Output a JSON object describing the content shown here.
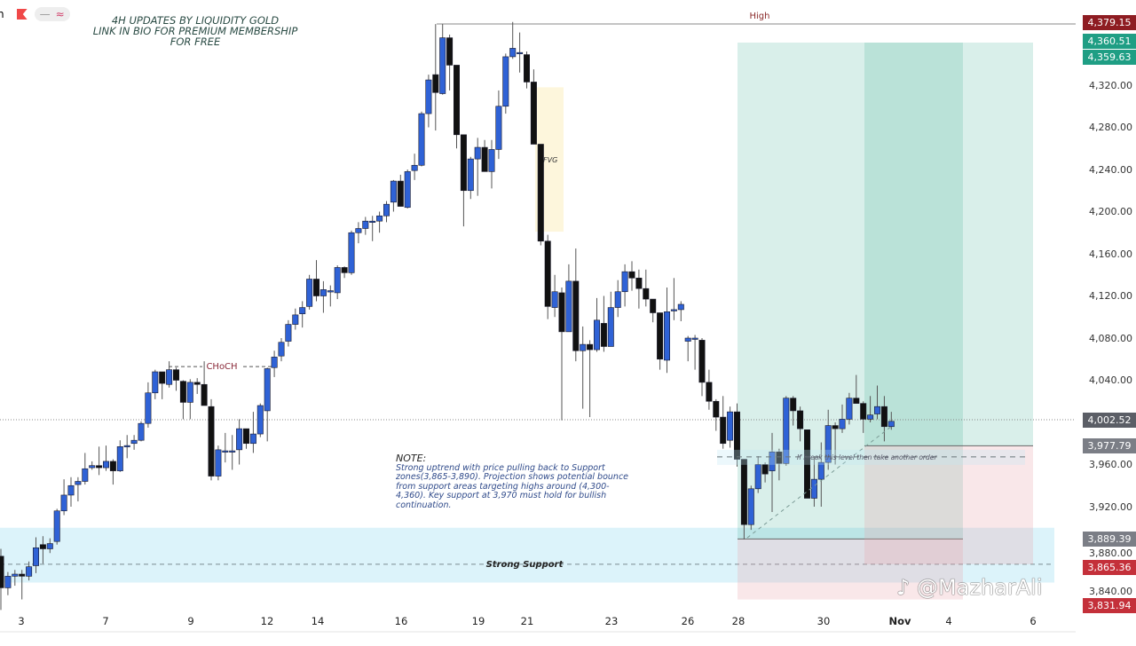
{
  "header": {
    "title_lines": [
      "4H UPDATES BY LIQUIDITY GOLD",
      "LINK IN BIO FOR PREMIUM MEMBERSHIP",
      "FOR FREE"
    ],
    "left_char": "n",
    "toolbar_icons": [
      "flag-icon",
      "minus-icon",
      "wave-icon"
    ]
  },
  "note": {
    "heading": "NOTE:",
    "body": "Strong uptrend with price pulling back to Support zones(3,865-3,890). Projection shows potential bounce from support areas targeting highs around (4,300-4,360). Key support at 3,970 must hold for bullish continuation."
  },
  "watermark": "@MazharAli",
  "colors": {
    "bull": "#2f62d6",
    "bear": "#111111",
    "profit": "#2aa58a",
    "loss": "#e8a0a8",
    "support": "#bfe9f5",
    "fvg": "#fdf6dc"
  },
  "chart_data": {
    "type": "candlestick",
    "title": "",
    "y_ticks": [
      4320,
      4280,
      4240,
      4200,
      4160,
      4120,
      4080,
      4040,
      3960,
      3920,
      3880,
      3840
    ],
    "y_tick_labels": [
      "4,320.00",
      "4,280.00",
      "4,240.00",
      "4,200.00",
      "4,160.00",
      "4,120.00",
      "4,080.00",
      "4,040.00",
      "3,960.00",
      "3,920.00",
      "3,880.00",
      "3,840.00"
    ],
    "x_ticks": [
      "3",
      "7",
      "9",
      "12",
      "14",
      "16",
      "19",
      "21",
      "23",
      "26",
      "28",
      "30",
      "Nov",
      "4",
      "6"
    ],
    "price_badges": [
      {
        "label": "4,379.15",
        "value": 4379.15,
        "color": "#8e1c22"
      },
      {
        "label": "4,360.51",
        "value": 4361.5,
        "color": "#1f9e84"
      },
      {
        "label": "4,359.63",
        "value": 4356,
        "color": "#1f9e84"
      },
      {
        "label": "4,002.52",
        "value": 4002.52,
        "color": "#5b5e66"
      },
      {
        "label": "3,977.79",
        "value": 3977.79,
        "color": "#7b7e86"
      },
      {
        "label": "3,889.39",
        "value": 3889.39,
        "color": "#7b7e86"
      },
      {
        "label": "3,865.36",
        "value": 3865.36,
        "color": "#c4303a"
      },
      {
        "label": "3,831.94",
        "value": 3831.94,
        "color": "#c4303a"
      }
    ],
    "annotations": {
      "high_label": "High",
      "high_value": 4379.15,
      "choch_label": "CHoCH",
      "choch_value": 4053,
      "fvg_label": "FVG",
      "fvg_range": [
        4181,
        4318
      ],
      "support_label": "Strong Support",
      "support_range": [
        3848,
        3900
      ],
      "support_line": 3865.36,
      "break_text": "If break this level then take another order",
      "break_level": 3974,
      "current_price": 4002.52,
      "positions": [
        {
          "entry": 3889.39,
          "target": 4359.63,
          "stop": 3831.94
        },
        {
          "entry": 3977.79,
          "target": 4360.51,
          "stop": 3865.36
        }
      ]
    },
    "candles": [
      [
        3873,
        3880,
        3822,
        3843
      ],
      [
        3843,
        3858,
        3836,
        3854
      ],
      [
        3854,
        3860,
        3845,
        3856
      ],
      [
        3856,
        3860,
        3832,
        3854
      ],
      [
        3854,
        3868,
        3850,
        3863
      ],
      [
        3864,
        3891,
        3857,
        3881
      ],
      [
        3884,
        3892,
        3866,
        3880
      ],
      [
        3880,
        3890,
        3876,
        3885
      ],
      [
        3887,
        3918,
        3884,
        3916
      ],
      [
        3916,
        3946,
        3912,
        3931
      ],
      [
        3931,
        3948,
        3920,
        3940
      ],
      [
        3941,
        3948,
        3925,
        3944
      ],
      [
        3944,
        3971,
        3941,
        3956
      ],
      [
        3957,
        3963,
        3955,
        3959
      ],
      [
        3959,
        3977,
        3950,
        3957
      ],
      [
        3957,
        3978,
        3954,
        3963
      ],
      [
        3963,
        3965,
        3941,
        3954
      ],
      [
        3954,
        3983,
        3953,
        3977
      ],
      [
        3978,
        3988,
        3966,
        3978
      ],
      [
        3980,
        3988,
        3974,
        3983
      ],
      [
        3983,
        4001,
        3982,
        3999
      ],
      [
        3999,
        4038,
        3995,
        4028
      ],
      [
        4028,
        4050,
        4022,
        4048
      ],
      [
        4048,
        4048,
        4022,
        4037
      ],
      [
        4036,
        4058,
        4033,
        4050
      ],
      [
        4050,
        4052,
        4030,
        4040
      ],
      [
        4039,
        4040,
        4003,
        4019
      ],
      [
        4019,
        4041,
        4003,
        4038
      ],
      [
        4038,
        4042,
        4027,
        4036
      ],
      [
        4036,
        4058,
        4016,
        4016
      ],
      [
        4015,
        4022,
        3945,
        3949
      ],
      [
        3949,
        3978,
        3945,
        3974
      ],
      [
        3973,
        3990,
        3962,
        3973
      ],
      [
        3973,
        3988,
        3955,
        3973
      ],
      [
        3974,
        4003,
        3960,
        3994
      ],
      [
        3994,
        3994,
        3975,
        3980
      ],
      [
        3980,
        4010,
        3971,
        3989
      ],
      [
        3989,
        4018,
        3986,
        4016
      ],
      [
        4011,
        4052,
        3982,
        4051
      ],
      [
        4052,
        4068,
        4043,
        4062
      ],
      [
        4063,
        4080,
        4058,
        4076
      ],
      [
        4077,
        4097,
        4072,
        4093
      ],
      [
        4093,
        4108,
        4088,
        4102
      ],
      [
        4103,
        4115,
        4090,
        4109
      ],
      [
        4110,
        4140,
        4107,
        4136
      ],
      [
        4136,
        4154,
        4115,
        4120
      ],
      [
        4120,
        4134,
        4104,
        4126
      ],
      [
        4125,
        4130,
        4110,
        4125
      ],
      [
        4123,
        4149,
        4117,
        4147
      ],
      [
        4147,
        4148,
        4137,
        4142
      ],
      [
        4142,
        4182,
        4140,
        4180
      ],
      [
        4180,
        4190,
        4170,
        4184
      ],
      [
        4184,
        4195,
        4178,
        4191
      ],
      [
        4191,
        4196,
        4172,
        4191
      ],
      [
        4191,
        4200,
        4180,
        4196
      ],
      [
        4196,
        4210,
        4190,
        4207
      ],
      [
        4209,
        4230,
        4200,
        4229
      ],
      [
        4229,
        4235,
        4205,
        4205
      ],
      [
        4204,
        4240,
        4203,
        4238
      ],
      [
        4239,
        4255,
        4230,
        4244
      ],
      [
        4244,
        4295,
        4243,
        4293
      ],
      [
        4293,
        4330,
        4280,
        4325
      ],
      [
        4330,
        4378,
        4277,
        4313
      ],
      [
        4312,
        4378,
        4311,
        4365
      ],
      [
        4365,
        4368,
        4315,
        4339
      ],
      [
        4339,
        4339,
        4260,
        4273
      ],
      [
        4273,
        4273,
        4186,
        4220
      ],
      [
        4220,
        4252,
        4212,
        4250
      ],
      [
        4250,
        4270,
        4215,
        4261
      ],
      [
        4261,
        4268,
        4238,
        4238
      ],
      [
        4238,
        4268,
        4222,
        4259
      ],
      [
        4259,
        4315,
        4250,
        4300
      ],
      [
        4300,
        4350,
        4293,
        4347
      ],
      [
        4347,
        4380,
        4345,
        4355
      ],
      [
        4351,
        4370,
        4332,
        4351
      ],
      [
        4349,
        4352,
        4317,
        4323
      ],
      [
        4323,
        4335,
        4264,
        4264
      ],
      [
        4264,
        4264,
        4168,
        4172
      ],
      [
        4172,
        4178,
        4098,
        4110
      ],
      [
        4109,
        4140,
        4100,
        4124
      ],
      [
        4123,
        4128,
        4002,
        4086
      ],
      [
        4086,
        4150,
        4086,
        4134
      ],
      [
        4134,
        4165,
        4058,
        4068
      ],
      [
        4068,
        4091,
        4013,
        4074
      ],
      [
        4074,
        4078,
        4005,
        4069
      ],
      [
        4069,
        4118,
        4067,
        4097
      ],
      [
        4094,
        4120,
        4067,
        4072
      ],
      [
        4072,
        4124,
        4072,
        4109
      ],
      [
        4109,
        4135,
        4100,
        4124
      ],
      [
        4124,
        4150,
        4110,
        4143
      ],
      [
        4143,
        4153,
        4125,
        4137
      ],
      [
        4137,
        4145,
        4108,
        4127
      ],
      [
        4127,
        4145,
        4110,
        4117
      ],
      [
        4117,
        4117,
        4095,
        4104
      ],
      [
        4104,
        4104,
        4050,
        4060
      ],
      [
        4059,
        4128,
        4047,
        4105
      ],
      [
        4107,
        4137,
        4097,
        4107
      ],
      [
        4107,
        4115,
        4096,
        4112
      ],
      [
        4077,
        4082,
        4058,
        4080
      ],
      [
        4080,
        4083,
        4050,
        4080
      ],
      [
        4078,
        4080,
        4025,
        4038
      ],
      [
        4038,
        4050,
        4012,
        4020
      ],
      [
        4020,
        4022,
        3992,
        4005
      ],
      [
        4005,
        4025,
        3975,
        3980
      ],
      [
        3983,
        4015,
        3976,
        4010
      ],
      [
        4010,
        4018,
        3958,
        3965
      ],
      [
        3965,
        3965,
        3889,
        3903
      ],
      [
        3903,
        3940,
        3898,
        3937
      ],
      [
        3937,
        3968,
        3933,
        3960
      ],
      [
        3960,
        3962,
        3943,
        3951
      ],
      [
        3954,
        3990,
        3915,
        3972
      ],
      [
        3972,
        3975,
        3945,
        3961
      ],
      [
        3961,
        4025,
        3959,
        4023
      ],
      [
        4023,
        4025,
        3997,
        4011
      ],
      [
        4011,
        4015,
        3982,
        3994
      ],
      [
        3993,
        3993,
        3928,
        3928
      ],
      [
        3928,
        3968,
        3920,
        3946
      ],
      [
        3946,
        3981,
        3920,
        3962
      ],
      [
        3962,
        4012,
        3955,
        3997
      ],
      [
        3997,
        4000,
        3960,
        3994
      ],
      [
        3994,
        4017,
        3990,
        4003
      ],
      [
        4003,
        4028,
        3998,
        4023
      ],
      [
        4023,
        4045,
        4018,
        4018
      ],
      [
        4018,
        4020,
        3990,
        4003
      ],
      [
        4003,
        4025,
        4000,
        4007
      ],
      [
        4008,
        4035,
        4003,
        4015
      ],
      [
        4015,
        4025,
        3982,
        3996
      ],
      [
        3996,
        4010,
        3993,
        4001
      ]
    ]
  }
}
